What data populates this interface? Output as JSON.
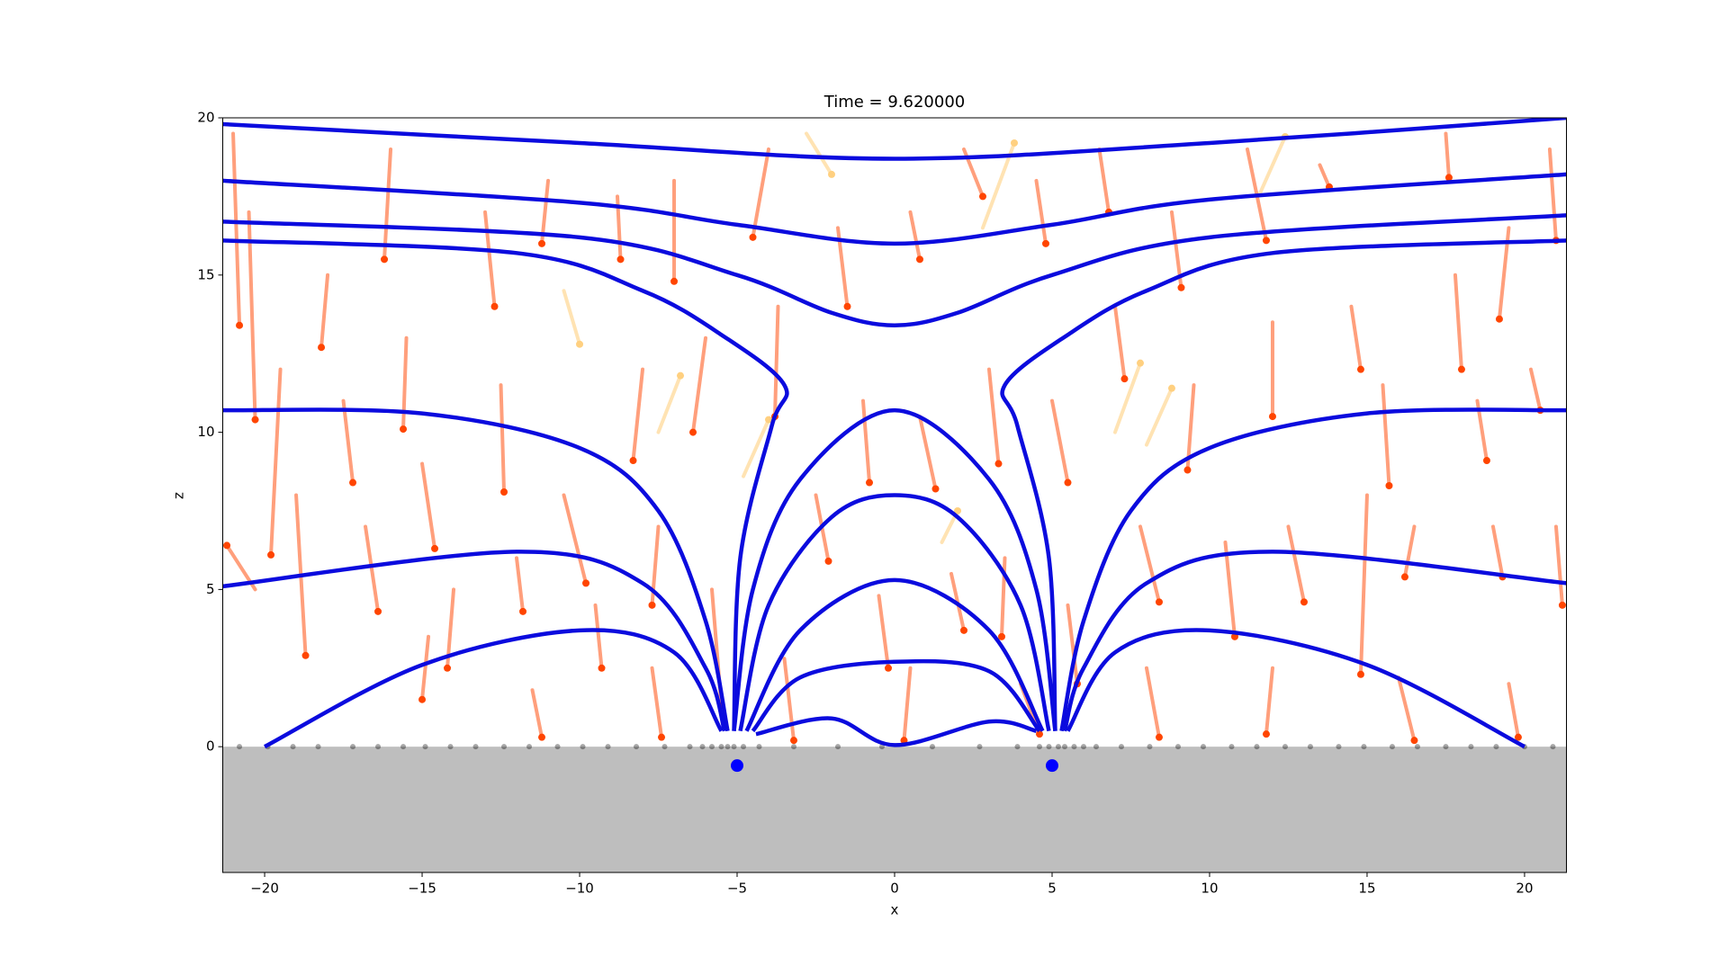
{
  "chart_data": {
    "type": "field",
    "title": "Time = 9.620000",
    "x_label": "x",
    "y_label": "z",
    "xlim": [
      -21.33,
      21.33
    ],
    "ylim": [
      -4,
      20
    ],
    "xticks": [
      {
        "value": -20,
        "label": "−20"
      },
      {
        "value": -15,
        "label": "−15"
      },
      {
        "value": -10,
        "label": "−10"
      },
      {
        "value": -5,
        "label": "−5"
      },
      0,
      5,
      10,
      15,
      20
    ],
    "yticks": [
      0,
      5,
      10,
      15,
      20
    ],
    "ground": {
      "z": 0,
      "color": "#bebebe"
    },
    "line_color": "#0b0bde",
    "series": [
      {
        "x": [
          -21.33,
          -10,
          0,
          10,
          21.33
        ],
        "values": [
          19.8,
          19.2,
          18.7,
          19.2,
          20
        ]
      },
      {
        "x": [
          -21.33,
          -10,
          -5,
          0,
          5,
          10,
          21.33
        ],
        "values": [
          18,
          17.3,
          16.6,
          16,
          16.6,
          17.4,
          18.2
        ]
      },
      {
        "x": [
          -21.33,
          -10,
          -5,
          -2,
          0,
          2,
          5,
          10,
          21.33
        ],
        "values": [
          16.7,
          16.2,
          15,
          13.8,
          13.4,
          13.8,
          15,
          16.2,
          16.9
        ]
      },
      {
        "x": [
          -21.33,
          -12,
          -8,
          -5.5,
          -3.5,
          -3.9,
          -4.9,
          -5.1
        ],
        "values": [
          16.1,
          15.7,
          14.5,
          13.1,
          11.5,
          10.2,
          6,
          0.5
        ]
      },
      {
        "x": [
          21.33,
          12,
          8,
          5.5,
          3.5,
          3.9,
          4.9,
          5.1
        ],
        "values": [
          16.1,
          15.7,
          14.5,
          13.1,
          11.5,
          10.2,
          6,
          0.5
        ]
      },
      {
        "x": [
          -21.33,
          -15,
          -10,
          -7.5,
          -6,
          -5.3
        ],
        "values": [
          10.7,
          10.6,
          9.5,
          7.5,
          4,
          0.5
        ]
      },
      {
        "x": [
          21.33,
          15,
          10,
          7.5,
          6,
          5.3
        ],
        "values": [
          10.7,
          10.6,
          9.5,
          7.5,
          4,
          0.5
        ]
      },
      {
        "x": [
          -21.33,
          -12,
          -8,
          -6,
          -5.4
        ],
        "values": [
          5.1,
          6.2,
          5.2,
          2.5,
          0.5
        ]
      },
      {
        "x": [
          21.33,
          12,
          8,
          6,
          5.4
        ],
        "values": [
          5.2,
          6.2,
          5.2,
          2.5,
          0.5
        ]
      },
      {
        "x": [
          -20,
          -15,
          -10,
          -7,
          -5.5
        ],
        "values": [
          0,
          2.6,
          3.7,
          3,
          0.5
        ]
      },
      {
        "x": [
          20,
          15,
          10,
          7,
          5.5
        ],
        "values": [
          0,
          2.6,
          3.7,
          3,
          0.5
        ]
      },
      {
        "x": [
          -5.1,
          -4.5,
          -3,
          0,
          3,
          4.5,
          5.1
        ],
        "values": [
          0.5,
          5,
          8.5,
          10.7,
          8.5,
          5,
          0.5
        ]
      },
      {
        "x": [
          -4.9,
          -4,
          -2,
          0,
          2,
          4,
          4.9
        ],
        "values": [
          0.5,
          4.5,
          7.3,
          8,
          7.3,
          4.5,
          0.5
        ]
      },
      {
        "x": [
          -4.7,
          -3,
          0,
          3,
          4.7
        ],
        "values": [
          0.5,
          3.7,
          5.3,
          3.7,
          0.5
        ]
      },
      {
        "x": [
          -4.5,
          -3,
          0,
          3,
          4.6
        ],
        "values": [
          0.5,
          2.2,
          2.7,
          2.4,
          0.5
        ]
      },
      {
        "x": [
          -4.4,
          -2,
          0,
          3,
          4.5
        ],
        "values": [
          0.4,
          0.9,
          0.05,
          0.8,
          0.5
        ]
      }
    ],
    "particles": {
      "color": "#ff7f50",
      "head_color": "#ff4500",
      "tracks": [
        [
          -21,
          19.5,
          -20.8,
          13.4
        ],
        [
          -20.5,
          17,
          -20.3,
          10.4
        ],
        [
          -19.5,
          12,
          -19.8,
          6.1
        ],
        [
          -19,
          8,
          -18.7,
          2.9
        ],
        [
          -18,
          15,
          -18.2,
          12.7
        ],
        [
          -17.5,
          11,
          -17.2,
          8.4
        ],
        [
          -16.8,
          7,
          -16.4,
          4.3
        ],
        [
          -16,
          19,
          -16.2,
          15.5
        ],
        [
          -15.5,
          13,
          -15.6,
          10.1
        ],
        [
          -15,
          9,
          -14.6,
          6.3
        ],
        [
          -14,
          5,
          -14.2,
          2.5
        ],
        [
          -13,
          17,
          -12.7,
          14
        ],
        [
          -12.5,
          11.5,
          -12.4,
          8.1
        ],
        [
          -12,
          6,
          -11.8,
          4.3
        ],
        [
          -11,
          18,
          -11.2,
          16
        ],
        [
          -10.5,
          8,
          -9.8,
          5.2
        ],
        [
          -9.5,
          4.5,
          -9.3,
          2.5
        ],
        [
          -8.8,
          17.5,
          -8.7,
          15.5
        ],
        [
          -8,
          12,
          -8.3,
          9.1
        ],
        [
          -7.5,
          7,
          -7.7,
          4.5
        ],
        [
          -7,
          18,
          -7,
          14.8
        ],
        [
          -6,
          13,
          -6.4,
          10
        ],
        [
          -5.8,
          5,
          -5.5,
          1.3
        ],
        [
          -4,
          19,
          -4.5,
          16.2
        ],
        [
          -3.7,
          14,
          -3.8,
          10.5
        ],
        [
          -2.5,
          8,
          -2.1,
          5.9
        ],
        [
          -1.8,
          16.5,
          -1.5,
          14
        ],
        [
          -1,
          11,
          -0.8,
          8.4
        ],
        [
          -0.5,
          4.8,
          -0.2,
          2.5
        ],
        [
          0.5,
          17,
          0.8,
          15.5
        ],
        [
          0.8,
          10.5,
          1.3,
          8.2
        ],
        [
          1.8,
          5.5,
          2.2,
          3.7
        ],
        [
          2.2,
          19,
          2.8,
          17.5
        ],
        [
          3,
          12,
          3.3,
          9
        ],
        [
          3.5,
          6,
          3.4,
          3.5
        ],
        [
          4.5,
          18,
          4.8,
          16
        ],
        [
          5,
          11,
          5.5,
          8.4
        ],
        [
          5.5,
          4.5,
          5.8,
          2
        ],
        [
          6.5,
          19,
          6.8,
          17
        ],
        [
          7,
          14,
          7.3,
          11.7
        ],
        [
          7.8,
          7,
          8.4,
          4.6
        ],
        [
          8.8,
          17,
          9.1,
          14.6
        ],
        [
          9.5,
          11.5,
          9.3,
          8.8
        ],
        [
          10.5,
          6.5,
          10.8,
          3.5
        ],
        [
          11.2,
          19,
          11.8,
          16.1
        ],
        [
          12,
          13.5,
          12,
          10.5
        ],
        [
          12.5,
          7,
          13,
          4.6
        ],
        [
          13.5,
          18.5,
          13.8,
          17.8
        ],
        [
          14.5,
          14,
          14.8,
          12
        ],
        [
          15,
          8,
          14.8,
          2.3
        ],
        [
          15.5,
          11.5,
          15.7,
          8.3
        ],
        [
          16.5,
          7,
          16.2,
          5.4
        ],
        [
          17.5,
          19.5,
          17.6,
          18.1
        ],
        [
          17.8,
          15,
          18,
          12
        ],
        [
          18.5,
          11,
          18.8,
          9.1
        ],
        [
          19,
          7,
          19.3,
          5.4
        ],
        [
          19.5,
          16.5,
          19.2,
          13.6
        ],
        [
          20.2,
          12,
          20.5,
          10.7
        ],
        [
          20.8,
          19,
          21,
          16.1
        ],
        [
          21,
          7,
          21.2,
          4.5
        ],
        [
          -20.3,
          5,
          -21.2,
          6.4
        ],
        [
          -14.8,
          3.5,
          -15,
          1.5
        ],
        [
          -11.5,
          1.8,
          -11.2,
          0.3
        ],
        [
          -7.7,
          2.5,
          -7.4,
          0.3
        ],
        [
          -3.5,
          2.8,
          -3.2,
          0.2
        ],
        [
          0.5,
          2.5,
          0.3,
          0.2
        ],
        [
          4,
          2,
          4.6,
          0.4
        ],
        [
          8,
          2.5,
          8.4,
          0.3
        ],
        [
          12,
          2.5,
          11.8,
          0.4
        ],
        [
          16,
          2.2,
          16.5,
          0.2
        ],
        [
          19.5,
          2,
          19.8,
          0.3
        ]
      ]
    },
    "tracers": {
      "color": "#ffd080",
      "tracks": [
        [
          -10.5,
          14.5,
          -10,
          12.8
        ],
        [
          -7.5,
          10,
          -6.8,
          11.8
        ],
        [
          7,
          10,
          7.8,
          12.2
        ],
        [
          8,
          9.6,
          8.8,
          11.4
        ],
        [
          11.6,
          17.6,
          12.4,
          19.4
        ],
        [
          2.8,
          16.5,
          3.8,
          19.2
        ],
        [
          -2.8,
          19.5,
          -2,
          18.2
        ],
        [
          -4.8,
          8.6,
          -4,
          10.4
        ],
        [
          1.5,
          6.5,
          2,
          7.5
        ]
      ]
    },
    "deposits": {
      "color": "#000000",
      "x": [
        -20.8,
        -19.9,
        -19.1,
        -18.3,
        -17.2,
        -16.4,
        -15.6,
        -14.9,
        -14.1,
        -13.3,
        -12.4,
        -11.6,
        -10.7,
        -9.9,
        -9.1,
        -8.2,
        -7.3,
        -6.5,
        -6.1,
        -5.8,
        -5.5,
        -5.3,
        -5.1,
        -4.8,
        -4.3,
        -3.2,
        -1.8,
        -0.4,
        1.2,
        2.7,
        3.9,
        4.6,
        4.9,
        5.2,
        5.4,
        5.7,
        6,
        6.4,
        7.2,
        8.1,
        9,
        9.8,
        10.7,
        11.5,
        12.4,
        13.2,
        14.1,
        14.9,
        15.8,
        16.6,
        17.5,
        18.3,
        19.1,
        20,
        20.9
      ]
    },
    "sources": {
      "color": "#0000ff",
      "x": [
        -5,
        5
      ],
      "z": [
        -0.6,
        -0.6
      ]
    }
  }
}
